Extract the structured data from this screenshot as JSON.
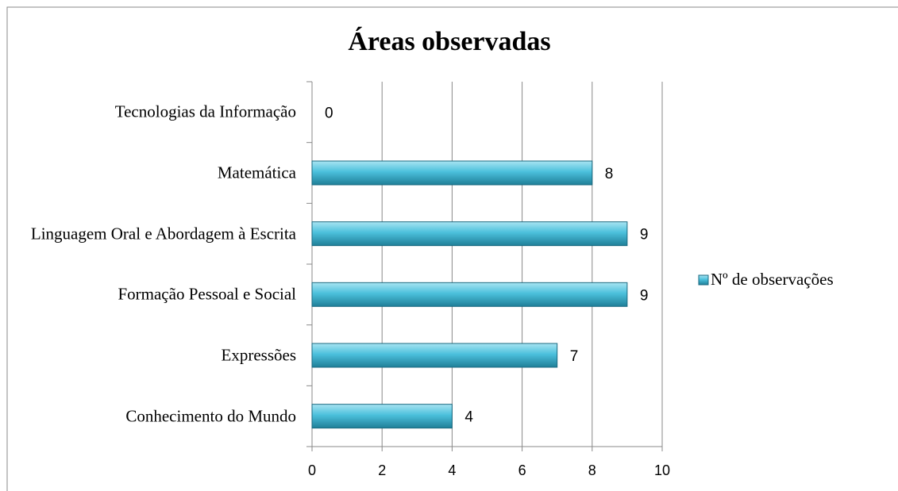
{
  "chart_data": {
    "type": "bar",
    "orientation": "horizontal",
    "title": "Áreas observadas",
    "categories": [
      "Tecnologias da Informação",
      "Matemática",
      "Linguagem Oral e Abordagem à Escrita",
      "Formação Pessoal e Social",
      "Expressões",
      "Conhecimento do Mundo"
    ],
    "series": [
      {
        "name": "Nº de observações",
        "color": "#4bacc6",
        "values": [
          0,
          8,
          9,
          9,
          7,
          4
        ]
      }
    ],
    "xlim": [
      0,
      10
    ],
    "xticks": [
      0,
      2,
      4,
      6,
      8,
      10
    ],
    "grid": true,
    "legend": "right"
  }
}
